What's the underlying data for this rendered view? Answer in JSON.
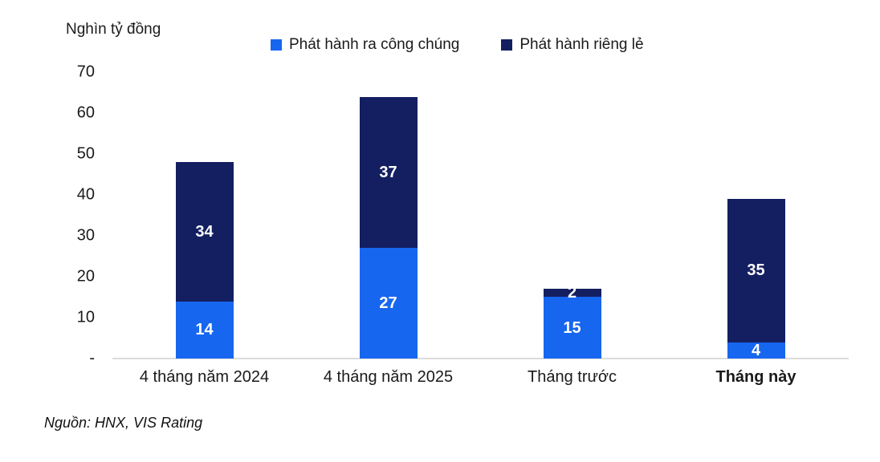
{
  "chart": {
    "axis_title": "Nghìn tỷ đồng",
    "source": "Nguồn: HNX, VIS Rating"
  },
  "chart_data": {
    "type": "bar",
    "stacked": true,
    "title": "",
    "ylabel": "Nghìn tỷ đồng",
    "ylim": [
      0,
      70
    ],
    "grid": false,
    "legend_position": "top",
    "categories": [
      {
        "label": "4 tháng năm 2024",
        "emphasis": false
      },
      {
        "label": "4 tháng năm 2025",
        "emphasis": false
      },
      {
        "label": "Tháng trước",
        "emphasis": false
      },
      {
        "label": "Tháng này",
        "emphasis": true
      }
    ],
    "series": [
      {
        "name": "Phát hành ra công chúng",
        "color": "#1766EF",
        "values": [
          14,
          27,
          15,
          4
        ]
      },
      {
        "name": "Phát hành riêng lẻ",
        "color": "#141F61",
        "values": [
          34,
          37,
          2,
          35
        ]
      }
    ],
    "totals": [
      48,
      64,
      17,
      39
    ],
    "yticks": [
      {
        "label": "70",
        "value": 70
      },
      {
        "label": "60",
        "value": 60
      },
      {
        "label": "50",
        "value": 50
      },
      {
        "label": "40",
        "value": 40
      },
      {
        "label": "30",
        "value": 30
      },
      {
        "label": "20",
        "value": 20
      },
      {
        "label": "10",
        "value": 10
      },
      {
        "label": "-",
        "value": 0
      }
    ]
  }
}
